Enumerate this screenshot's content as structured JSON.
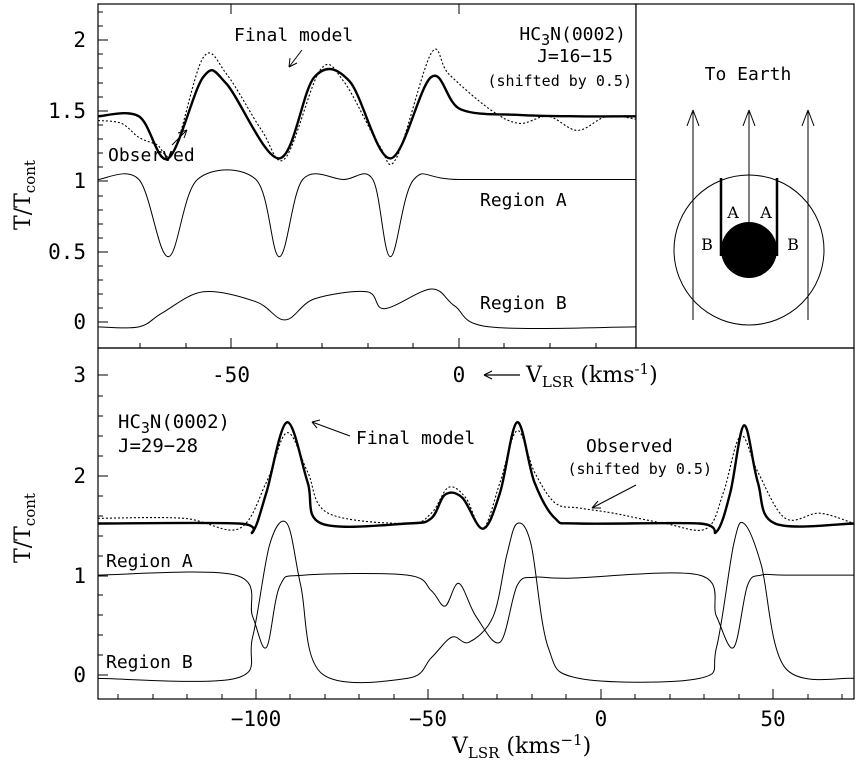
{
  "top_panel": {
    "ylabel_main": "T/T",
    "ylabel_sub": "cont",
    "yticks": [
      "0",
      "0.5",
      "1",
      "1.5",
      "2"
    ],
    "xticks": [
      "-50",
      "0"
    ],
    "xlabel_main": "V",
    "xlabel_sub": "LSR",
    "xlabel_units": " (kms",
    "xlabel_exp": "-1",
    "xlabel_close": ")",
    "mol_a": "HC",
    "mol_sub": "3",
    "mol_b": "N(0002)",
    "transition": "J=16−15",
    "shift_note": "(shifted by 0.5)",
    "final_model_label": "Final model",
    "observed_label": "Observed",
    "region_a_label": "Region A",
    "region_b_label": "Region B"
  },
  "inset": {
    "to_earth": "To Earth",
    "label_a": "A",
    "label_b": "B"
  },
  "bottom_panel": {
    "ylabel_main": "T/T",
    "ylabel_sub": "cont",
    "yticks": [
      "0",
      "1",
      "2",
      "3"
    ],
    "xticks": [
      "−100",
      "−50",
      "0",
      "50"
    ],
    "xlabel_main": "V",
    "xlabel_sub": "LSR",
    "xlabel_units": " (kms",
    "xlabel_exp": "−1",
    "xlabel_close": ")",
    "mol_a": "HC",
    "mol_sub": "3",
    "mol_b": "N(0002)",
    "transition": "J=29−28",
    "final_model_label": "Final model",
    "observed_label": "Observed",
    "shift_note": "(shifted by 0.5)",
    "region_a_label": "Region A",
    "region_b_label": "Region B"
  },
  "chart_data": [
    {
      "type": "line",
      "panel": "top",
      "xlim": [
        -62,
        30
      ],
      "ylim": [
        -0.15,
        2.3
      ],
      "series": [
        {
          "name": "Final model",
          "x": [
            -62,
            -55,
            -50,
            -44,
            -40,
            -31,
            -25,
            -19,
            -12,
            -5,
            0,
            10,
            20,
            30
          ],
          "values": [
            1.5,
            1.5,
            1.2,
            1.78,
            1.73,
            1.2,
            1.78,
            1.75,
            1.2,
            1.78,
            1.55,
            1.51,
            1.5,
            1.5
          ]
        },
        {
          "name": "Observed",
          "x": [
            -62,
            -58,
            -55,
            -52,
            -49,
            -44,
            -40,
            -34,
            -30,
            -24,
            -20,
            -14,
            -11,
            -5,
            -2,
            5,
            10,
            15,
            20,
            25,
            30
          ],
          "values": [
            1.47,
            1.45,
            1.35,
            1.3,
            1.25,
            1.92,
            1.8,
            1.4,
            1.2,
            1.83,
            1.75,
            1.3,
            1.2,
            1.95,
            1.8,
            1.55,
            1.45,
            1.5,
            1.4,
            1.5,
            1.48
          ]
        },
        {
          "name": "Region A",
          "x": [
            -62,
            -55,
            -50,
            -45,
            -35,
            -31,
            -27,
            -20,
            -15,
            -12,
            -8,
            0,
            30
          ],
          "values": [
            1.05,
            1.05,
            0.5,
            1.05,
            1.05,
            0.5,
            1.05,
            1.05,
            1.05,
            0.5,
            1.05,
            1.05,
            1.05
          ]
        },
        {
          "name": "Region B",
          "x": [
            -62,
            -55,
            -51,
            -44,
            -35,
            -30,
            -25,
            -16,
            -13,
            -5,
            -1,
            5,
            30
          ],
          "values": [
            0,
            0,
            0.1,
            0.25,
            0.18,
            0.05,
            0.2,
            0.25,
            0.13,
            0.27,
            0.15,
            0,
            0
          ]
        }
      ]
    },
    {
      "type": "line",
      "panel": "bottom",
      "xlim": [
        -145,
        75
      ],
      "ylim": [
        -0.2,
        3.2
      ],
      "series": [
        {
          "name": "Final model",
          "x": [
            -145,
            -104,
            -100,
            -96,
            -90,
            -84,
            -80,
            -55,
            -48,
            -44,
            -39,
            -33,
            -28,
            -23,
            -18,
            -12,
            -5,
            30,
            35,
            39,
            43,
            47,
            52,
            75
          ],
          "values": [
            1.5,
            1.5,
            1.42,
            1.8,
            2.48,
            1.9,
            1.5,
            1.5,
            1.55,
            1.78,
            1.75,
            1.45,
            1.8,
            2.48,
            1.9,
            1.55,
            1.5,
            1.5,
            1.42,
            1.8,
            2.45,
            1.9,
            1.5,
            1.5
          ]
        },
        {
          "name": "Observed",
          "x": [
            -145,
            -120,
            -104,
            -96,
            -90,
            -84,
            -78,
            -55,
            -48,
            -43,
            -38,
            -33,
            -28,
            -23,
            -18,
            -12,
            -5,
            5,
            20,
            32,
            37,
            42,
            47,
            55,
            65,
            75
          ],
          "values": [
            1.55,
            1.55,
            1.45,
            1.9,
            2.38,
            2.0,
            1.6,
            1.5,
            1.6,
            1.85,
            1.75,
            1.45,
            1.9,
            2.4,
            2.0,
            1.7,
            1.65,
            1.6,
            1.5,
            1.45,
            1.8,
            2.35,
            2.0,
            1.55,
            1.6,
            1.5
          ]
        },
        {
          "name": "Region A",
          "x": [
            -145,
            -105,
            -100,
            -96,
            -92,
            -85,
            -55,
            -48,
            -44,
            -40,
            -35,
            -28,
            -23,
            -18,
            -8,
            30,
            35,
            40,
            44,
            48,
            55,
            75
          ],
          "values": [
            1.0,
            1.0,
            0.6,
            0.3,
            0.9,
            1.0,
            1.0,
            0.85,
            0.7,
            0.92,
            0.6,
            0.35,
            0.9,
            0.98,
            0.97,
            1.0,
            0.6,
            0.3,
            0.9,
            1.0,
            1.0,
            1.0
          ]
        },
        {
          "name": "Region B",
          "x": [
            -145,
            -105,
            -100,
            -95,
            -90,
            -86,
            -80,
            -55,
            -48,
            -42,
            -37,
            -30,
            -26,
            -23,
            -19,
            -14,
            -5,
            30,
            35,
            40,
            43,
            48,
            55,
            75
          ],
          "values": [
            0,
            0,
            0.4,
            1.3,
            1.5,
            0.9,
            0.05,
            0,
            0.2,
            0.4,
            0.35,
            0.6,
            1.2,
            1.5,
            1.3,
            0.3,
            0,
            0,
            0.3,
            1.3,
            1.5,
            1.1,
            0.1,
            0
          ]
        }
      ]
    }
  ]
}
